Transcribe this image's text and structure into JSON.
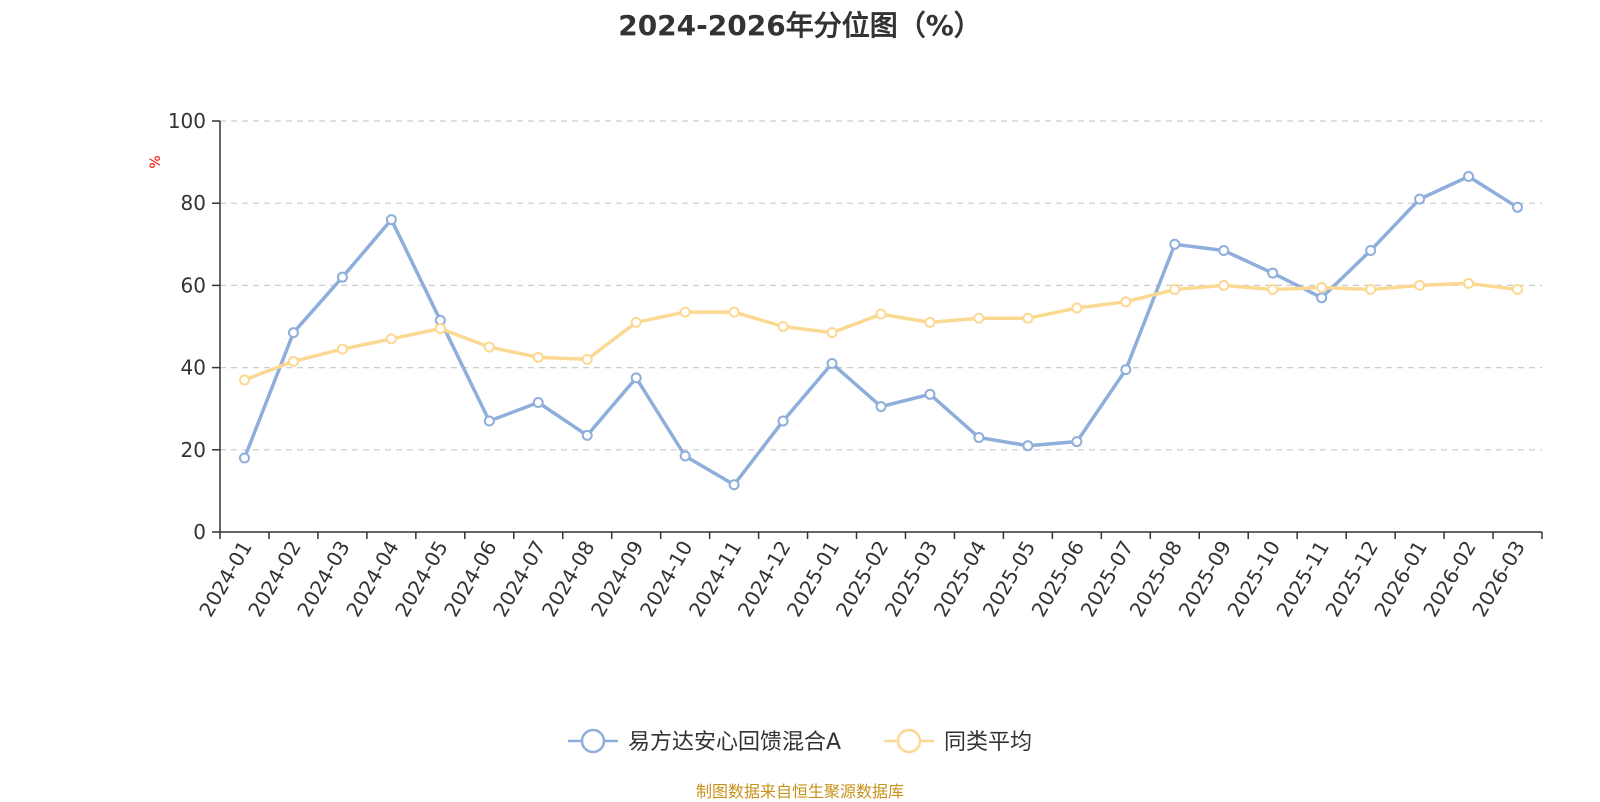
{
  "chart_data": {
    "type": "line",
    "title": "2024-2026年分位图（%）",
    "ylabel": "%",
    "xlabel": "",
    "ylim": [
      0,
      100
    ],
    "yticks": [
      0,
      20,
      40,
      60,
      80,
      100
    ],
    "grid": true,
    "legend_position": "bottom",
    "categories": [
      "2024-01",
      "2024-02",
      "2024-03",
      "2024-04",
      "2024-05",
      "2024-06",
      "2024-07",
      "2024-08",
      "2024-09",
      "2024-10",
      "2024-11",
      "2024-12",
      "2025-01",
      "2025-02",
      "2025-03",
      "2025-04",
      "2025-05",
      "2025-06",
      "2025-07",
      "2025-08",
      "2025-09",
      "2025-10",
      "2025-11",
      "2025-12",
      "2026-01",
      "2026-02",
      "2026-03"
    ],
    "series": [
      {
        "name": "易方达安心回馈混合A",
        "color": "#8eaedb",
        "values": [
          18,
          48.5,
          62,
          76,
          51.5,
          27,
          31.5,
          23.5,
          37.5,
          18.5,
          11.5,
          27,
          41,
          30.5,
          33.5,
          23,
          21,
          22,
          39.5,
          70,
          68.5,
          63,
          57,
          68.5,
          81,
          86.5,
          79
        ]
      },
      {
        "name": "同类平均",
        "color": "#fcd992",
        "values": [
          37,
          41.5,
          44.5,
          47,
          49.5,
          45,
          42.5,
          42,
          51,
          53.5,
          53.5,
          50,
          48.5,
          53,
          51,
          52,
          52,
          54.5,
          56,
          59,
          60,
          59,
          59.5,
          59,
          60,
          60.5,
          59
        ]
      }
    ],
    "source_note": "制图数据来自恒生聚源数据库"
  }
}
